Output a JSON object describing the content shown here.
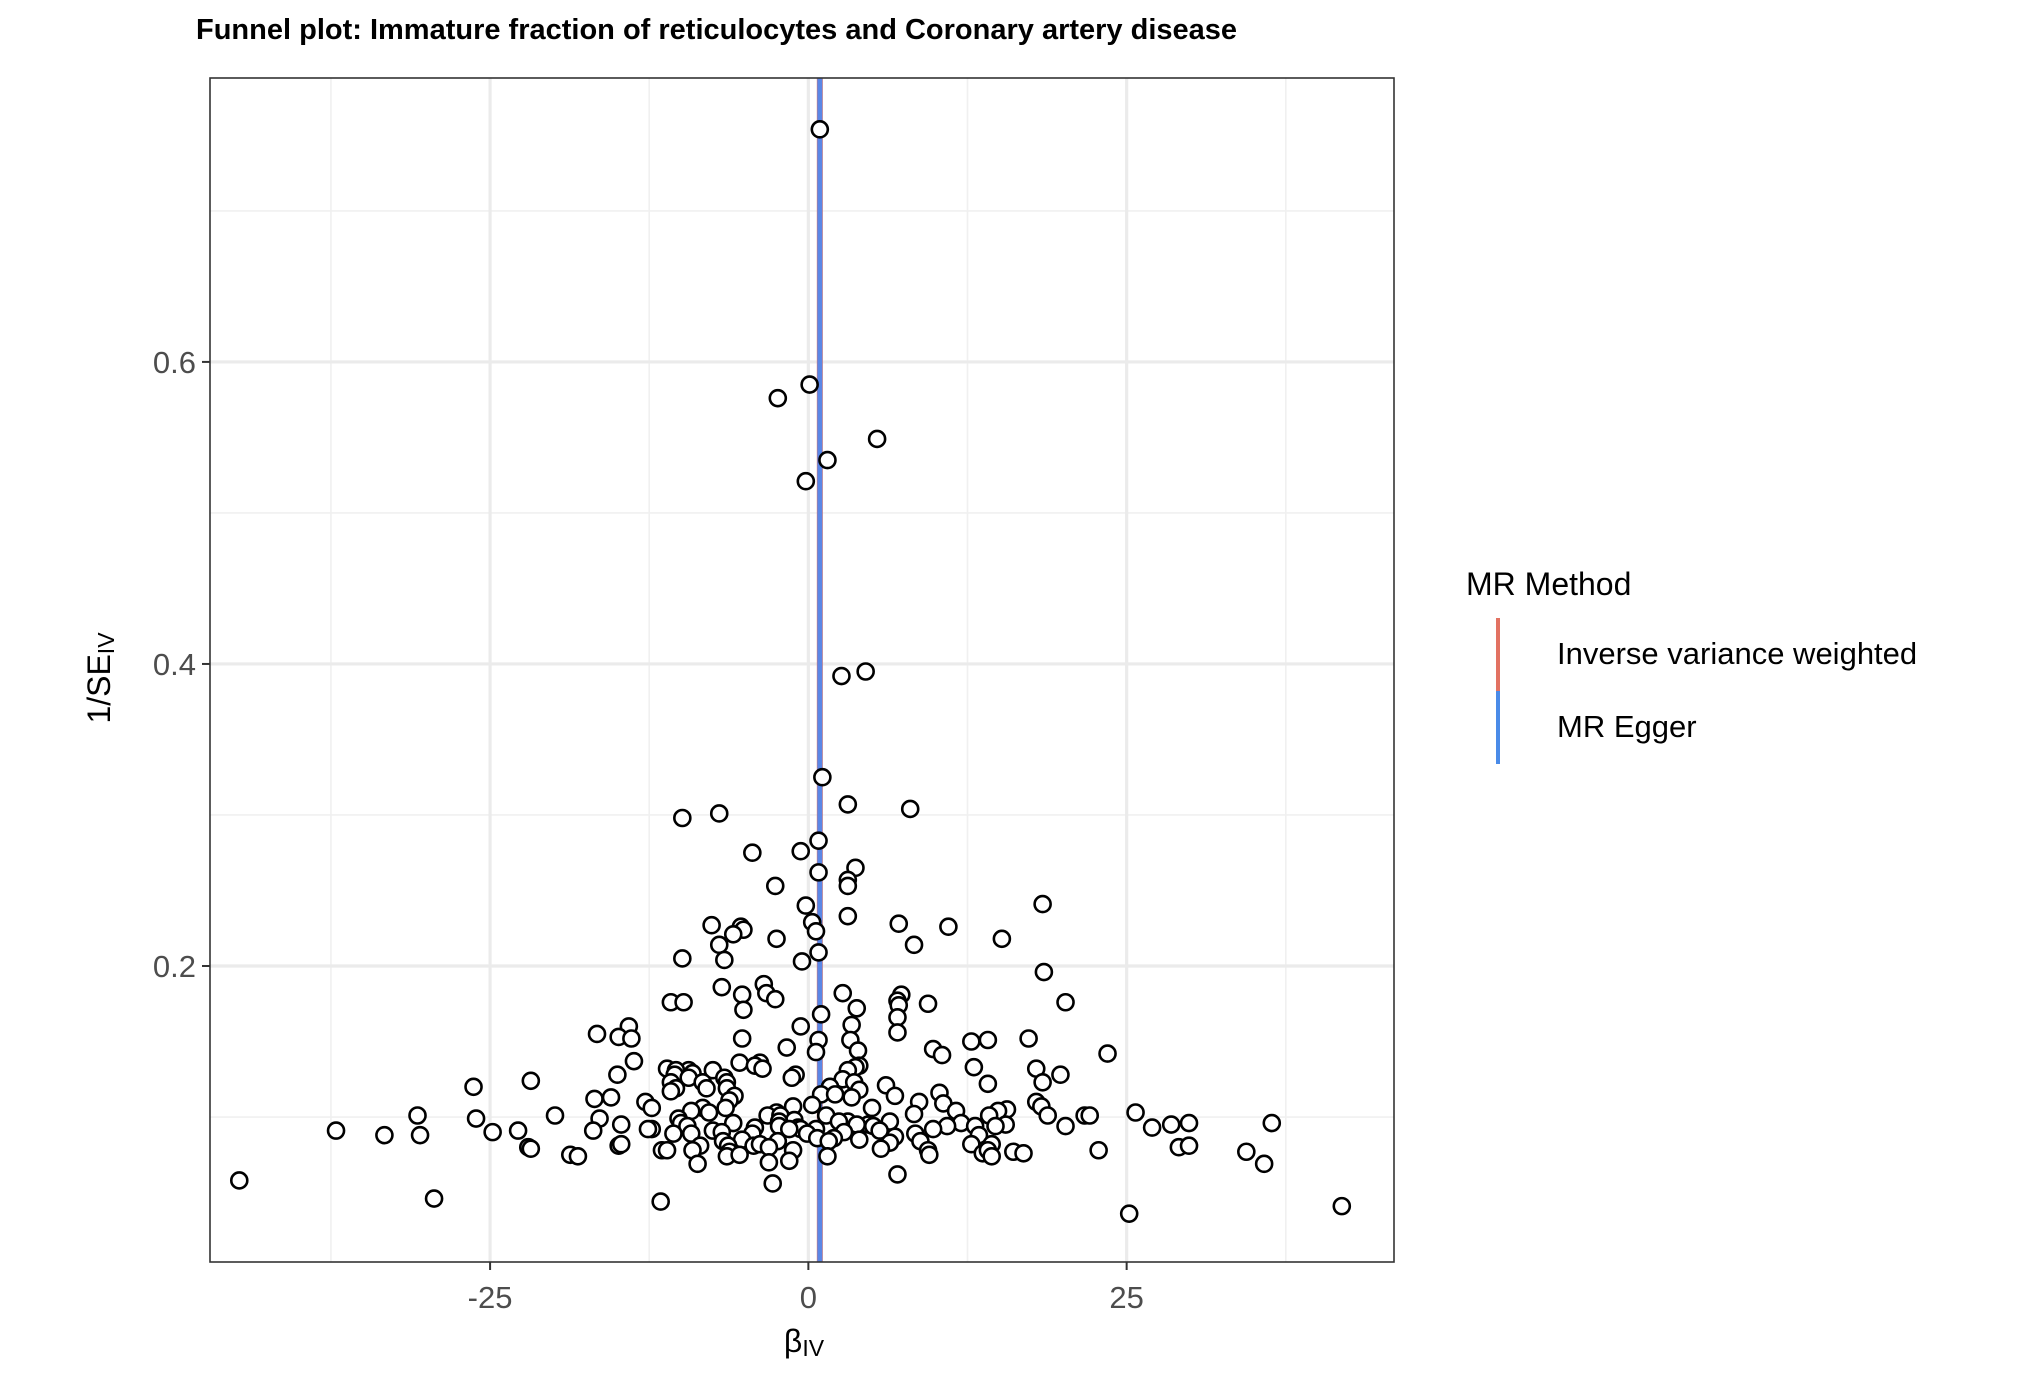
{
  "chart_data": {
    "type": "scatter",
    "title": "Funnel plot: Immature fraction of reticulocytes and Coronary artery disease",
    "xlabel": {
      "main": "β",
      "sub": "IV"
    },
    "ylabel": {
      "main": "1/SE",
      "sub": "IV"
    },
    "xlim": [
      -47,
      46
    ],
    "ylim": [
      0.004,
      0.788
    ],
    "x_ticks": [
      -25,
      0,
      25
    ],
    "y_ticks": [
      0.2,
      0.4,
      0.6
    ],
    "x_tick_labels": [
      "-25",
      "0",
      "25"
    ],
    "y_tick_labels": [
      "0.2",
      "0.4",
      "0.6"
    ],
    "grid": true,
    "legend": {
      "title": "MR Method",
      "position": "right",
      "entries": [
        {
          "name": "Inverse variance weighted",
          "color": "#E27262"
        },
        {
          "name": "MR Egger",
          "color": "#4A8BE8"
        }
      ]
    },
    "lines": [
      {
        "name": "Inverse variance weighted",
        "x": 0.9,
        "color": "#E27262"
      },
      {
        "name": "MR Egger",
        "x": 0.9,
        "color": "#5B87E6"
      }
    ],
    "points": [
      [
        0.9,
        0.754
      ],
      [
        0.1,
        0.585
      ],
      [
        -2.4,
        0.576
      ],
      [
        5.4,
        0.549
      ],
      [
        1.5,
        0.535
      ],
      [
        -0.2,
        0.521
      ],
      [
        2.6,
        0.392
      ],
      [
        4.5,
        0.395
      ],
      [
        1.1,
        0.325
      ],
      [
        3.1,
        0.307
      ],
      [
        8,
        0.304
      ],
      [
        -7,
        0.301
      ],
      [
        -9.9,
        0.298
      ],
      [
        0.8,
        0.283
      ],
      [
        -0.6,
        0.276
      ],
      [
        -4.4,
        0.275
      ],
      [
        3.7,
        0.265
      ],
      [
        0.8,
        0.262
      ],
      [
        3.1,
        0.257
      ],
      [
        -2.6,
        0.253
      ],
      [
        3.1,
        0.253
      ],
      [
        -0.2,
        0.24
      ],
      [
        18.4,
        0.241
      ],
      [
        3.1,
        0.233
      ],
      [
        0.3,
        0.229
      ],
      [
        7.1,
        0.228
      ],
      [
        11,
        0.226
      ],
      [
        -7.6,
        0.227
      ],
      [
        0.6,
        0.223
      ],
      [
        -5.3,
        0.226
      ],
      [
        -5.1,
        0.224
      ],
      [
        -5.9,
        0.221
      ],
      [
        -2.5,
        0.218
      ],
      [
        15.2,
        0.218
      ],
      [
        8.3,
        0.214
      ],
      [
        -7,
        0.214
      ],
      [
        0.8,
        0.209
      ],
      [
        -9.9,
        0.205
      ],
      [
        -6.6,
        0.204
      ],
      [
        -0.5,
        0.203
      ],
      [
        18.5,
        0.196
      ],
      [
        -6.8,
        0.186
      ],
      [
        -3.5,
        0.188
      ],
      [
        -3.3,
        0.182
      ],
      [
        2.7,
        0.182
      ],
      [
        7.3,
        0.181
      ],
      [
        -5.2,
        0.181
      ],
      [
        -2.6,
        0.178
      ],
      [
        7,
        0.177
      ],
      [
        -10.8,
        0.176
      ],
      [
        -9.8,
        0.176
      ],
      [
        9.4,
        0.175
      ],
      [
        20.2,
        0.176
      ],
      [
        7.1,
        0.174
      ],
      [
        3.8,
        0.172
      ],
      [
        -5.1,
        0.171
      ],
      [
        1,
        0.168
      ],
      [
        7,
        0.166
      ],
      [
        -0.6,
        0.16
      ],
      [
        3.4,
        0.161
      ],
      [
        -14.1,
        0.16
      ],
      [
        7,
        0.156
      ],
      [
        -16.6,
        0.155
      ],
      [
        -14.9,
        0.153
      ],
      [
        -13.9,
        0.152
      ],
      [
        17.3,
        0.152
      ],
      [
        0.8,
        0.151
      ],
      [
        3.3,
        0.151
      ],
      [
        -5.2,
        0.152
      ],
      [
        12.8,
        0.15
      ],
      [
        14.1,
        0.151
      ],
      [
        -1.7,
        0.146
      ],
      [
        3.9,
        0.144
      ],
      [
        9.8,
        0.145
      ],
      [
        0.6,
        0.143
      ],
      [
        10.5,
        0.141
      ],
      [
        23.5,
        0.142
      ],
      [
        -5.4,
        0.136
      ],
      [
        -13.7,
        0.137
      ],
      [
        -3.8,
        0.136
      ],
      [
        -4.2,
        0.134
      ],
      [
        4,
        0.134
      ],
      [
        -11.1,
        0.132
      ],
      [
        -9.4,
        0.131
      ],
      [
        3.7,
        0.133
      ],
      [
        -10.4,
        0.131
      ],
      [
        3.1,
        0.131
      ],
      [
        -3.6,
        0.132
      ],
      [
        17.9,
        0.132
      ],
      [
        13,
        0.133
      ],
      [
        -15,
        0.128
      ],
      [
        -7.5,
        0.131
      ],
      [
        -9.1,
        0.129
      ],
      [
        -10.5,
        0.128
      ],
      [
        -1,
        0.128
      ],
      [
        -9.4,
        0.126
      ],
      [
        19.8,
        0.128
      ],
      [
        -6.6,
        0.126
      ],
      [
        -1.3,
        0.126
      ],
      [
        2.7,
        0.125
      ],
      [
        -10.8,
        0.123
      ],
      [
        -8.3,
        0.123
      ],
      [
        3.6,
        0.123
      ],
      [
        18.4,
        0.123
      ],
      [
        -6.4,
        0.123
      ],
      [
        -10.4,
        0.119
      ],
      [
        -26.3,
        0.12
      ],
      [
        6.1,
        0.121
      ],
      [
        -21.8,
        0.124
      ],
      [
        14.1,
        0.122
      ],
      [
        -6.4,
        0.119
      ],
      [
        -8,
        0.119
      ],
      [
        4,
        0.118
      ],
      [
        1.7,
        0.12
      ],
      [
        -10.8,
        0.117
      ],
      [
        1,
        0.115
      ],
      [
        2.1,
        0.115
      ],
      [
        6.8,
        0.114
      ],
      [
        10.3,
        0.116
      ],
      [
        -5.8,
        0.114
      ],
      [
        -15.5,
        0.113
      ],
      [
        -16.8,
        0.112
      ],
      [
        3.4,
        0.113
      ],
      [
        -12.8,
        0.11
      ],
      [
        -6.2,
        0.111
      ],
      [
        10.6,
        0.109
      ],
      [
        17.9,
        0.11
      ],
      [
        18.3,
        0.107
      ],
      [
        -12.3,
        0.106
      ],
      [
        -8.3,
        0.106
      ],
      [
        0.3,
        0.108
      ],
      [
        -1.2,
        0.107
      ],
      [
        5,
        0.106
      ],
      [
        8.7,
        0.11
      ],
      [
        15.6,
        0.105
      ],
      [
        25.7,
        0.103
      ],
      [
        -9.2,
        0.104
      ],
      [
        -6.5,
        0.106
      ],
      [
        11.6,
        0.104
      ],
      [
        14.9,
        0.104
      ],
      [
        -2.5,
        0.103
      ],
      [
        1.4,
        0.101
      ],
      [
        -7.8,
        0.103
      ],
      [
        -3.2,
        0.101
      ],
      [
        -19.9,
        0.101
      ],
      [
        14.2,
        0.101
      ],
      [
        -2.2,
        0.101
      ],
      [
        18.8,
        0.101
      ],
      [
        21.7,
        0.101
      ],
      [
        -30.7,
        0.101
      ],
      [
        8.3,
        0.102
      ],
      [
        -10.2,
        0.099
      ],
      [
        -26.1,
        0.099
      ],
      [
        22.1,
        0.101
      ],
      [
        -16.4,
        0.099
      ],
      [
        12,
        0.096
      ],
      [
        -1.1,
        0.098
      ],
      [
        3.1,
        0.097
      ],
      [
        -2.3,
        0.097
      ],
      [
        4.7,
        0.095
      ],
      [
        -5.9,
        0.096
      ],
      [
        -10,
        0.096
      ],
      [
        6.4,
        0.097
      ],
      [
        3.8,
        0.095
      ],
      [
        2.4,
        0.097
      ],
      [
        5.1,
        0.094
      ],
      [
        15.5,
        0.095
      ],
      [
        13.1,
        0.094
      ],
      [
        -9.5,
        0.094
      ],
      [
        -12.3,
        0.092
      ],
      [
        -14.7,
        0.095
      ],
      [
        -0.8,
        0.093
      ],
      [
        -0.6,
        0.092
      ],
      [
        -2.3,
        0.094
      ],
      [
        20.2,
        0.094
      ],
      [
        14.7,
        0.094
      ],
      [
        -1.5,
        0.092
      ],
      [
        28.5,
        0.095
      ],
      [
        29.9,
        0.096
      ],
      [
        36.4,
        0.096
      ],
      [
        -12.6,
        0.092
      ],
      [
        27,
        0.093
      ],
      [
        0.6,
        0.092
      ],
      [
        -4.2,
        0.093
      ],
      [
        5.6,
        0.091
      ],
      [
        -0.1,
        0.089
      ],
      [
        10.9,
        0.094
      ],
      [
        9.8,
        0.092
      ],
      [
        -7.5,
        0.091
      ],
      [
        -16.9,
        0.091
      ],
      [
        -6.8,
        0.09
      ],
      [
        -9.2,
        0.089
      ],
      [
        2.8,
        0.09
      ],
      [
        -37.1,
        0.091
      ],
      [
        -22.8,
        0.091
      ],
      [
        -24.8,
        0.09
      ],
      [
        -4.4,
        0.089
      ],
      [
        8.4,
        0.089
      ],
      [
        -10.6,
        0.089
      ],
      [
        6.8,
        0.087
      ],
      [
        -33.3,
        0.088
      ],
      [
        -30.5,
        0.088
      ],
      [
        13.4,
        0.088
      ],
      [
        -2.4,
        0.084
      ],
      [
        -5.2,
        0.085
      ],
      [
        2,
        0.086
      ],
      [
        8.8,
        0.084
      ],
      [
        0.7,
        0.086
      ],
      [
        6.4,
        0.083
      ],
      [
        1.6,
        0.084
      ],
      [
        4,
        0.085
      ],
      [
        -6.7,
        0.084
      ],
      [
        -4.3,
        0.081
      ],
      [
        -3.8,
        0.082
      ],
      [
        -8.5,
        0.081
      ],
      [
        12.8,
        0.082
      ],
      [
        14.4,
        0.082
      ],
      [
        -6.3,
        0.081
      ],
      [
        -14.9,
        0.081
      ],
      [
        -11.5,
        0.078
      ],
      [
        -14.7,
        0.082
      ],
      [
        -22,
        0.08
      ],
      [
        -21.8,
        0.079
      ],
      [
        29.1,
        0.08
      ],
      [
        29.9,
        0.081
      ],
      [
        -6.2,
        0.077
      ],
      [
        -9.1,
        0.078
      ],
      [
        -3.1,
        0.08
      ],
      [
        -1.2,
        0.078
      ],
      [
        5.7,
        0.079
      ],
      [
        9.4,
        0.078
      ],
      [
        16.1,
        0.077
      ],
      [
        13.7,
        0.076
      ],
      [
        14.1,
        0.078
      ],
      [
        22.8,
        0.078
      ],
      [
        34.4,
        0.077
      ],
      [
        -11.1,
        0.078
      ],
      [
        9.5,
        0.075
      ],
      [
        1.5,
        0.074
      ],
      [
        16.9,
        0.076
      ],
      [
        -6.4,
        0.074
      ],
      [
        -5.4,
        0.075
      ],
      [
        -18.7,
        0.075
      ],
      [
        -18.1,
        0.074
      ],
      [
        14.4,
        0.074
      ],
      [
        -1.5,
        0.071
      ],
      [
        -3.1,
        0.07
      ],
      [
        -8.7,
        0.069
      ],
      [
        35.8,
        0.069
      ],
      [
        7,
        0.062
      ],
      [
        -44.7,
        0.058
      ],
      [
        -2.8,
        0.056
      ],
      [
        -29.4,
        0.046
      ],
      [
        -11.6,
        0.044
      ],
      [
        41.9,
        0.041
      ],
      [
        25.2,
        0.036
      ]
    ]
  }
}
